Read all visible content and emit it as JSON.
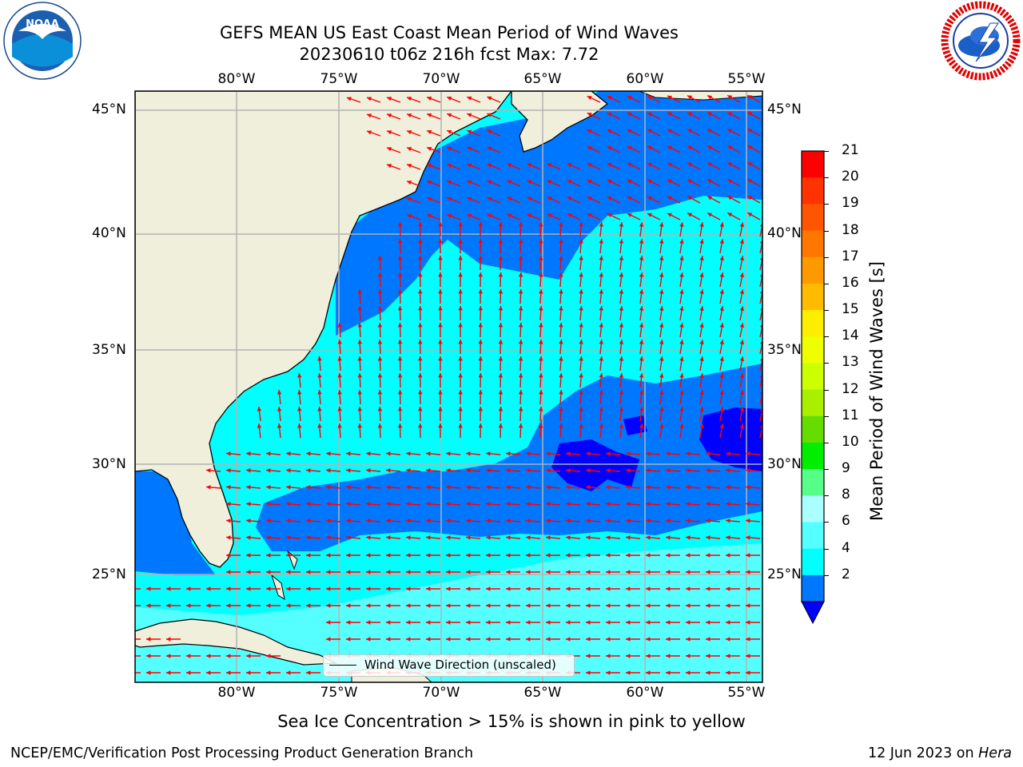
{
  "title": {
    "line1": "GEFS MEAN US East Coast Mean Period of Wind Waves",
    "line2": "20230610 t06z 216h fcst   Max: 7.72"
  },
  "logos": {
    "left": {
      "name": "noaa-logo",
      "text": "NOAA",
      "ring_text": "NATIONAL OCEANIC AND ATMOSPHERIC ADMINISTRATION · U.S. DEPARTMENT OF COMMERCE"
    },
    "right": {
      "name": "nws-logo",
      "ring_text": "NATIONAL WEATHER SERVICE"
    }
  },
  "map": {
    "projection": "PlateCarree",
    "extent": {
      "lon_min": -85,
      "lon_max": -54.2,
      "lat_min": 20.5,
      "lat_max": 45.9
    },
    "lon_ticks": [
      "80°W",
      "75°W",
      "70°W",
      "65°W",
      "60°W",
      "55°W"
    ],
    "lat_ticks": [
      "45°N",
      "40°N",
      "35°N",
      "30°N",
      "25°N"
    ],
    "colors": {
      "land": "#efefdc",
      "coast": "#000000",
      "grid": "#b3b3b3",
      "arrow": "#ff0000"
    }
  },
  "legend": {
    "label": "Wind Wave Direction (unscaled)"
  },
  "colorbar": {
    "label": "Mean Period of Wind Waves [s]",
    "ticks": [
      "21",
      "20",
      "19",
      "18",
      "17",
      "16",
      "15",
      "14",
      "13",
      "12",
      "11",
      "10",
      "9",
      "8",
      "6",
      "4",
      "2"
    ],
    "colors_top_to_bottom": [
      "#ff0000",
      "#ff3300",
      "#ff5500",
      "#ff7700",
      "#ff9900",
      "#ffbb00",
      "#ffee00",
      "#eeff00",
      "#ccff00",
      "#aaee00",
      "#66dd00",
      "#00ee00",
      "#55ff88",
      "#aaffff",
      "#55ffff",
      "#00ffff",
      "#0077ff"
    ],
    "extend_low_color": "#0000ff"
  },
  "caption": "Sea Ice Concentration > 15% is shown in pink to yellow",
  "footer": {
    "left": "NCEP/EMC/Verification Post Processing Product Generation Branch",
    "right_date": "12 Jun 2023 on ",
    "right_machine": "Hera"
  }
}
